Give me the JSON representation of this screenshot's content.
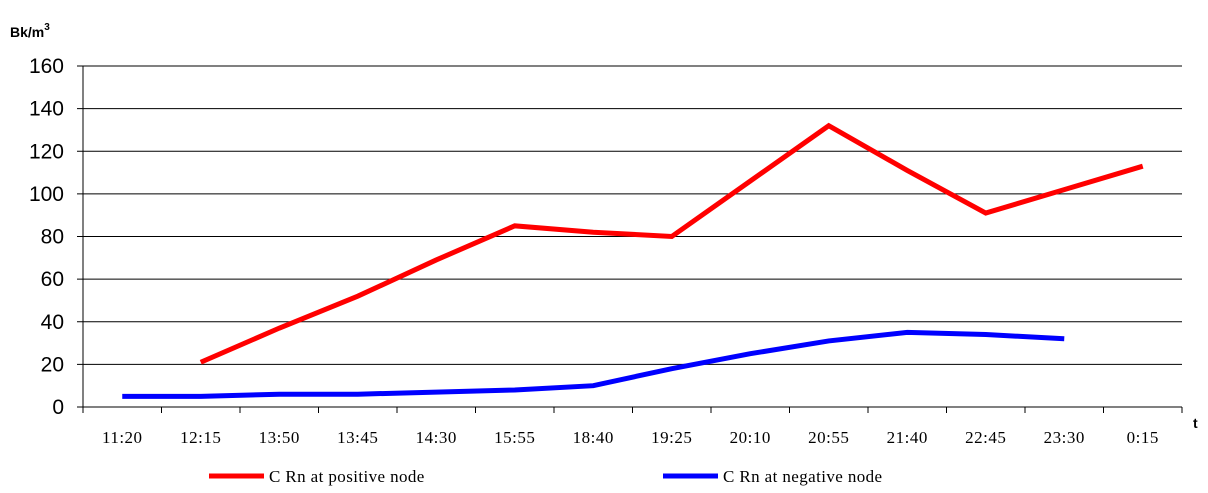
{
  "chart_data": {
    "type": "line",
    "ylabel": "Bk/m",
    "ylabel_superscript": "3",
    "xlabel": "t",
    "ylim": [
      0,
      160
    ],
    "yticks": [
      0,
      20,
      40,
      60,
      80,
      100,
      120,
      140,
      160
    ],
    "grid": "horizontal",
    "legend_position": "bottom",
    "categories": [
      "11:20",
      "12:15",
      "13:50",
      "13:45",
      "14:30",
      "15:55",
      "18:40",
      "19:25",
      "20:10",
      "20:55",
      "21:40",
      "22:45",
      "23:30",
      "0:15"
    ],
    "series": [
      {
        "name": "C Rn at positive node",
        "color": "#ff0000",
        "values": [
          null,
          21,
          37,
          52,
          69,
          85,
          82,
          80,
          106,
          132,
          111,
          91,
          102,
          113
        ]
      },
      {
        "name": "C Rn at negative node",
        "color": "#0000ff",
        "values": [
          5,
          5,
          6,
          6,
          7,
          8,
          10,
          18,
          25,
          31,
          35,
          34,
          32,
          null
        ]
      }
    ]
  }
}
